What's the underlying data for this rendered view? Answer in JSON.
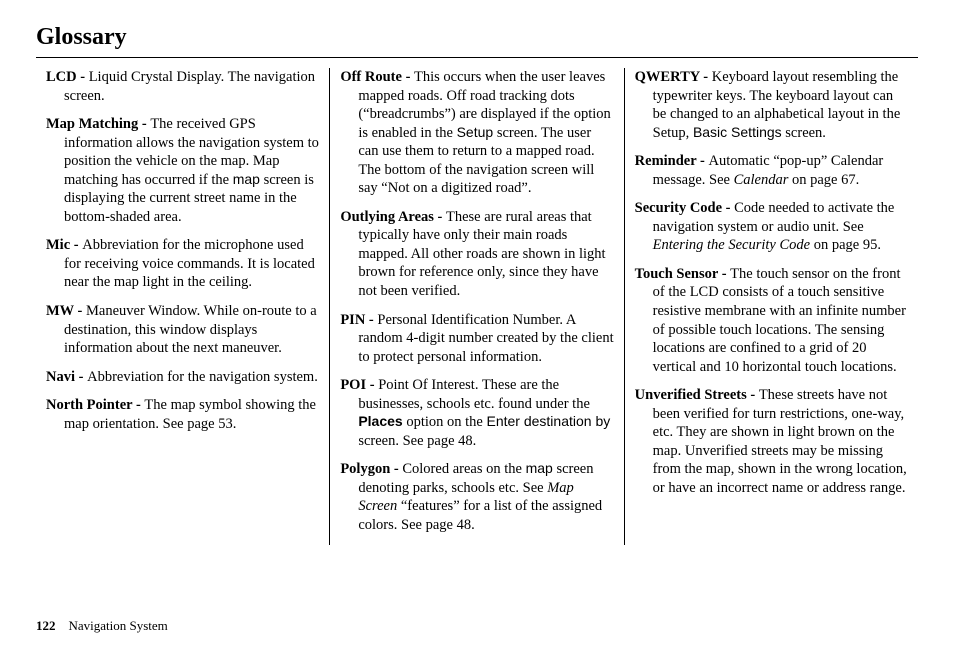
{
  "title": "Glossary",
  "footer": {
    "pageNumber": "122",
    "section": "Navigation System"
  },
  "columns": [
    [
      {
        "term": "LCD - ",
        "parts": [
          {
            "t": "Liquid Crystal Display. The navigation screen."
          }
        ]
      },
      {
        "term": "Map Matching - ",
        "parts": [
          {
            "t": "The received GPS information allows the navigation system to position the vehicle on the map. Map matching has occurred if the "
          },
          {
            "t": "map",
            "cls": "ui"
          },
          {
            "t": " screen is displaying the current street name in the bottom-shaded area."
          }
        ]
      },
      {
        "term": "Mic - ",
        "parts": [
          {
            "t": "Abbreviation for the microphone used for receiving voice commands. It is located near the map light in the ceiling."
          }
        ]
      },
      {
        "term": "MW - ",
        "parts": [
          {
            "t": "Maneuver Window. While on-route to a destination, this window displays information about the next maneuver."
          }
        ]
      },
      {
        "term": "Navi - ",
        "parts": [
          {
            "t": "Abbreviation for the navigation system."
          }
        ]
      },
      {
        "term": "North Pointer - ",
        "parts": [
          {
            "t": "The map symbol showing the map orientation. See page 53."
          }
        ]
      }
    ],
    [
      {
        "term": "Off Route - ",
        "parts": [
          {
            "t": "This occurs when the user leaves mapped roads. Off road tracking dots (“breadcrumbs”) are displayed if the option is enabled in the "
          },
          {
            "t": "Setup",
            "cls": "ui"
          },
          {
            "t": " screen. The user can use them to return to a mapped road. The bottom of the navigation screen will say “Not on a digitized road”."
          }
        ]
      },
      {
        "term": "Outlying Areas - ",
        "parts": [
          {
            "t": "These are rural areas that typically have only their main roads mapped. All other roads are shown in light brown for reference only, since they have not been verified."
          }
        ]
      },
      {
        "term": "PIN - ",
        "parts": [
          {
            "t": "Personal Identification Number. A random 4-digit number created by the client to protect personal information."
          }
        ]
      },
      {
        "term": "POI - ",
        "parts": [
          {
            "t": "Point Of Interest. These are the businesses, schools etc. found under the "
          },
          {
            "t": "Places",
            "cls": "ui-bold"
          },
          {
            "t": " option on the "
          },
          {
            "t": "Enter destination by",
            "cls": "ui"
          },
          {
            "t": " screen. See page 48."
          }
        ]
      },
      {
        "term": "Polygon - ",
        "parts": [
          {
            "t": "Colored areas on the "
          },
          {
            "t": "map",
            "cls": "ui"
          },
          {
            "t": " screen denoting parks, schools etc. See "
          },
          {
            "t": "Map Screen",
            "cls": "ital"
          },
          {
            "t": " “features” for a list of the assigned colors. See page 48."
          }
        ]
      }
    ],
    [
      {
        "term": "QWERTY - ",
        "parts": [
          {
            "t": "Keyboard layout resembling the typewriter keys. The keyboard layout can be changed to an alphabetical layout in the Setup, "
          },
          {
            "t": "Basic Settings",
            "cls": "ui"
          },
          {
            "t": " screen."
          }
        ]
      },
      {
        "term": "Reminder - ",
        "parts": [
          {
            "t": "Automatic “pop-up” Calendar message. See "
          },
          {
            "t": "Calendar",
            "cls": "ital"
          },
          {
            "t": " on page 67."
          }
        ]
      },
      {
        "term": "Security Code - ",
        "parts": [
          {
            "t": "Code needed to activate the navigation system or audio unit. See "
          },
          {
            "t": "Entering the Security Code",
            "cls": "ital"
          },
          {
            "t": " on page 95."
          }
        ]
      },
      {
        "term": "Touch Sensor - ",
        "parts": [
          {
            "t": "The touch sensor on the front of the LCD consists of a touch sensitive resistive membrane with an infinite number of possible touch locations. The sensing locations are confined to a grid of 20 vertical and 10 horizontal touch locations."
          }
        ]
      },
      {
        "term": "Unverified Streets - ",
        "parts": [
          {
            "t": "These streets have not been verified for turn restrictions, one-way, etc. They are shown in light brown on the map. Unverified streets may be missing from the map, shown in the wrong location, or have an incorrect name or address range."
          }
        ]
      }
    ]
  ]
}
